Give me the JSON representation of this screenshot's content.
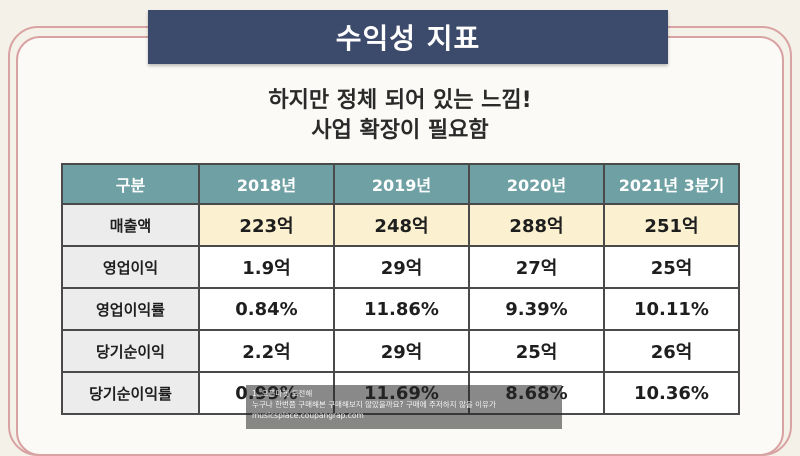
{
  "title": "수익성 지표",
  "subtitle": {
    "line1": "하지만 정체 되어 있는 느낌!",
    "line2": "사업 확장이 필요함"
  },
  "table": {
    "headers": [
      "구분",
      "2018년",
      "2019년",
      "2020년",
      "2021년 3분기"
    ],
    "rows": [
      {
        "label": "매출액",
        "values": [
          "223억",
          "248억",
          "288억",
          "251억"
        ]
      },
      {
        "label": "영업이익",
        "values": [
          "1.9억",
          "29억",
          "27억",
          "25억"
        ]
      },
      {
        "label": "영업이익률",
        "values": [
          "0.84%",
          "11.86%",
          "9.39%",
          "10.11%"
        ]
      },
      {
        "label": "당기순이익",
        "values": [
          "2.2억",
          "29억",
          "25억",
          "26억"
        ]
      },
      {
        "label": "당기순이익률",
        "values": [
          "0.99%",
          "11.69%",
          "8.68%",
          "10.36%"
        ]
      }
    ]
  },
  "overlay": {
    "line1": "1. 오픈마켓 도전해",
    "line2": "누구나 한번쯤 구매해본 구매해보지 않았을까요? 구매에 주저하지 않을 이유가",
    "line3": "musicsplace.coupangrap.com"
  },
  "colors": {
    "title_bg": "#3c4a6b",
    "header_bg": "#6fa0a3",
    "highlight_row": "#fbf1d1",
    "frame": "#d9a3a3"
  }
}
